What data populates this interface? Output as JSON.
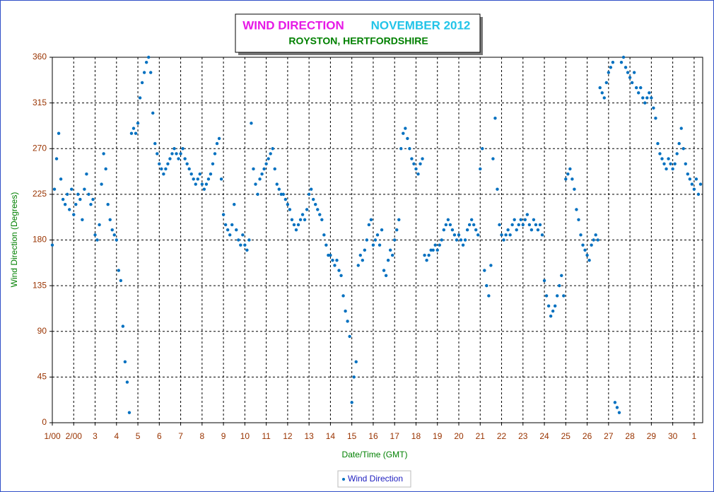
{
  "chart_data": {
    "type": "scatter",
    "title": "WIND DIRECTION",
    "period": "NOVEMBER 2012",
    "subtitle": "ROYSTON, HERTFORDSHIRE",
    "x_label": "Date/Time (GMT)",
    "y_label": "Wind Direction (Degrees)",
    "xlim": [
      1,
      31.4
    ],
    "ylim": [
      0,
      360
    ],
    "xticks": [
      {
        "value": 1,
        "label": "1/00"
      },
      {
        "value": 2,
        "label": "2/00"
      },
      3,
      4,
      5,
      6,
      7,
      8,
      9,
      10,
      11,
      12,
      13,
      14,
      15,
      16,
      17,
      18,
      19,
      20,
      21,
      22,
      23,
      24,
      25,
      26,
      27,
      28,
      29,
      30,
      {
        "value": 31,
        "label": "1"
      }
    ],
    "yticks": [
      0,
      45,
      90,
      135,
      180,
      225,
      270,
      315,
      360
    ],
    "grid": true,
    "legend": "bottom",
    "x": [
      1,
      1.1,
      1.2,
      1.3,
      1.4,
      1.5,
      1.6,
      1.7,
      1.8,
      1.9,
      2,
      2.1,
      2.2,
      2.3,
      2.4,
      2.5,
      2.6,
      2.7,
      2.8,
      2.9,
      3,
      3.1,
      3.2,
      3.3,
      3.4,
      3.5,
      3.6,
      3.7,
      3.8,
      3.9,
      4,
      4.1,
      4.2,
      4.3,
      4.4,
      4.5,
      4.6,
      4.7,
      4.8,
      4.9,
      5,
      5.1,
      5.2,
      5.3,
      5.4,
      5.5,
      5.6,
      5.7,
      5.8,
      5.9,
      6,
      6.1,
      6.2,
      6.3,
      6.4,
      6.5,
      6.6,
      6.7,
      6.8,
      6.9,
      7,
      7.1,
      7.2,
      7.3,
      7.4,
      7.5,
      7.6,
      7.7,
      7.8,
      7.9,
      8,
      8.1,
      8.2,
      8.3,
      8.4,
      8.5,
      8.6,
      8.7,
      8.8,
      8.9,
      9,
      9.1,
      9.2,
      9.3,
      9.4,
      9.5,
      9.6,
      9.7,
      9.8,
      9.9,
      10,
      10.1,
      10.2,
      10.3,
      10.4,
      10.5,
      10.6,
      10.7,
      10.8,
      10.9,
      11,
      11.1,
      11.2,
      11.3,
      11.4,
      11.5,
      11.6,
      11.7,
      11.8,
      11.9,
      12,
      12.1,
      12.2,
      12.3,
      12.4,
      12.5,
      12.6,
      12.7,
      12.8,
      12.9,
      13,
      13.1,
      13.2,
      13.3,
      13.4,
      13.5,
      13.6,
      13.7,
      13.8,
      13.9,
      14,
      14.1,
      14.2,
      14.3,
      14.4,
      14.5,
      14.6,
      14.7,
      14.8,
      14.9,
      15,
      15.1,
      15.2,
      15.3,
      15.4,
      15.5,
      15.6,
      15.7,
      15.8,
      15.9,
      16,
      16.1,
      16.2,
      16.3,
      16.4,
      16.5,
      16.6,
      16.7,
      16.8,
      16.9,
      17,
      17.1,
      17.2,
      17.3,
      17.4,
      17.5,
      17.6,
      17.7,
      17.8,
      17.9,
      18,
      18.1,
      18.2,
      18.3,
      18.4,
      18.5,
      18.6,
      18.7,
      18.8,
      18.9,
      19,
      19.1,
      19.2,
      19.3,
      19.4,
      19.5,
      19.6,
      19.7,
      19.8,
      19.9,
      20,
      20.1,
      20.2,
      20.3,
      20.4,
      20.5,
      20.6,
      20.7,
      20.8,
      20.9,
      21,
      21.1,
      21.2,
      21.3,
      21.4,
      21.5,
      21.6,
      21.7,
      21.8,
      21.9,
      22,
      22.1,
      22.2,
      22.3,
      22.4,
      22.5,
      22.6,
      22.7,
      22.8,
      22.9,
      23,
      23.1,
      23.2,
      23.3,
      23.4,
      23.5,
      23.6,
      23.7,
      23.8,
      23.9,
      24,
      24.1,
      24.2,
      24.3,
      24.4,
      24.5,
      24.6,
      24.7,
      24.8,
      24.9,
      25,
      25.1,
      25.2,
      25.3,
      25.4,
      25.5,
      25.6,
      25.7,
      25.8,
      25.9,
      26,
      26.1,
      26.2,
      26.3,
      26.4,
      26.5,
      26.6,
      26.7,
      26.8,
      26.9,
      27,
      27.1,
      27.2,
      27.3,
      27.4,
      27.5,
      27.6,
      27.7,
      27.8,
      27.9,
      28,
      28.1,
      28.2,
      28.3,
      28.4,
      28.5,
      28.6,
      28.7,
      28.8,
      28.9,
      29,
      29.1,
      29.2,
      29.3,
      29.4,
      29.5,
      29.6,
      29.7,
      29.8,
      29.9,
      30,
      30.1,
      30.2,
      30.3,
      30.4,
      30.5,
      30.6,
      30.7,
      30.8,
      30.9,
      31,
      31.1,
      31.2,
      31.3
    ],
    "series": [
      {
        "name": "Wind Direction",
        "color": "#0070c0",
        "values": [
          175,
          230,
          260,
          285,
          240,
          220,
          215,
          225,
          210,
          230,
          205,
          215,
          225,
          220,
          200,
          230,
          245,
          225,
          215,
          220,
          185,
          180,
          195,
          235,
          265,
          250,
          215,
          200,
          190,
          185,
          180,
          150,
          140,
          95,
          60,
          40,
          10,
          285,
          290,
          285,
          295,
          320,
          335,
          345,
          355,
          360,
          345,
          305,
          275,
          265,
          255,
          250,
          245,
          250,
          255,
          260,
          265,
          270,
          265,
          260,
          265,
          270,
          260,
          255,
          250,
          245,
          240,
          235,
          240,
          245,
          235,
          230,
          235,
          240,
          245,
          255,
          265,
          275,
          280,
          240,
          205,
          195,
          190,
          185,
          195,
          215,
          190,
          180,
          175,
          185,
          175,
          170,
          180,
          295,
          250,
          235,
          225,
          240,
          245,
          250,
          255,
          260,
          265,
          270,
          250,
          235,
          230,
          225,
          225,
          220,
          215,
          210,
          200,
          195,
          190,
          195,
          200,
          205,
          200,
          210,
          225,
          230,
          220,
          215,
          210,
          205,
          200,
          185,
          175,
          165,
          165,
          160,
          155,
          160,
          150,
          145,
          125,
          110,
          100,
          85,
          20,
          45,
          60,
          155,
          165,
          160,
          170,
          180,
          195,
          200,
          175,
          180,
          185,
          175,
          190,
          150,
          145,
          160,
          170,
          165,
          180,
          190,
          200,
          270,
          285,
          290,
          280,
          270,
          260,
          255,
          250,
          245,
          255,
          260,
          165,
          160,
          165,
          170,
          170,
          175,
          170,
          175,
          180,
          190,
          195,
          200,
          195,
          190,
          185,
          180,
          185,
          180,
          175,
          180,
          190,
          195,
          200,
          195,
          190,
          185,
          250,
          270,
          150,
          135,
          125,
          155,
          260,
          300,
          230,
          195,
          185,
          180,
          185,
          190,
          185,
          195,
          200,
          190,
          195,
          200,
          195,
          200,
          205,
          195,
          190,
          200,
          195,
          190,
          195,
          185,
          140,
          125,
          115,
          105,
          110,
          115,
          125,
          135,
          145,
          125,
          240,
          245,
          250,
          240,
          230,
          210,
          200,
          185,
          175,
          170,
          165,
          160,
          175,
          180,
          185,
          180,
          330,
          325,
          320,
          335,
          345,
          350,
          355,
          20,
          15,
          10,
          355,
          360,
          350,
          345,
          340,
          335,
          345,
          330,
          325,
          330,
          320,
          315,
          320,
          325,
          320,
          310,
          300,
          275,
          265,
          260,
          255,
          250,
          260,
          255,
          250,
          255,
          265,
          275,
          290,
          270,
          255,
          245,
          240,
          235,
          230,
          240,
          225,
          235
        ]
      }
    ]
  }
}
